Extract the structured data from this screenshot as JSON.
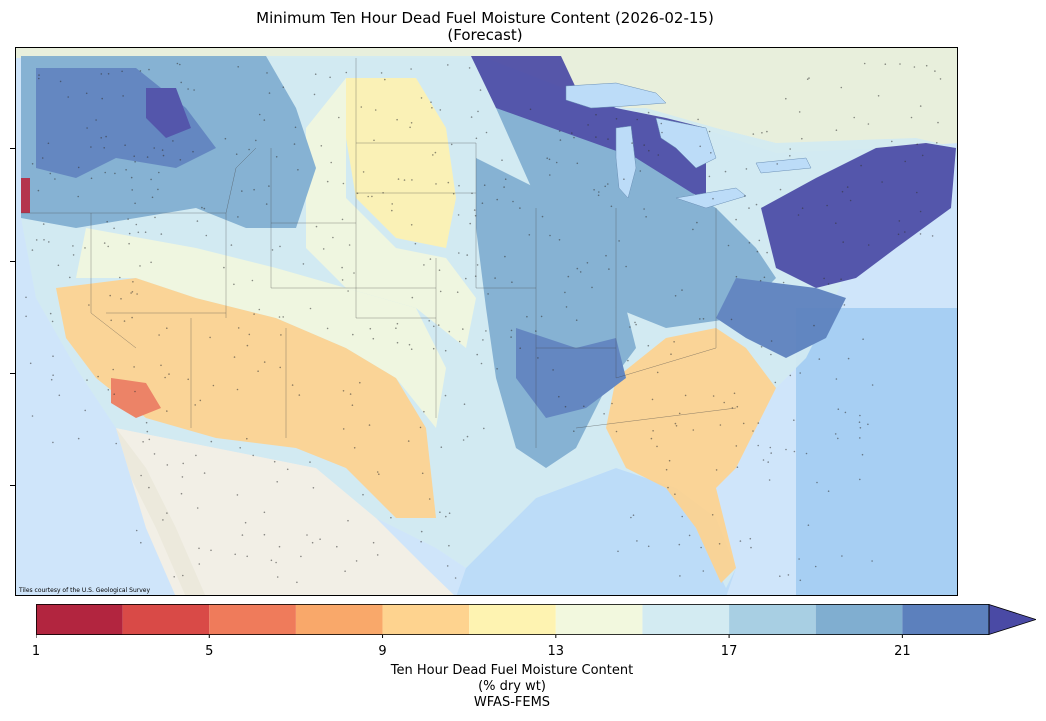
{
  "title": {
    "line1": "Minimum Ten Hour Dead Fuel Moisture Content (2026-02-15)",
    "line2": "(Forecast)"
  },
  "map": {
    "attribution": "Tiles courtesy of the U.S. Geological Survey",
    "basemap_colors": {
      "ocean": "#cfe5fa",
      "land": "#eef0e2",
      "mexico": "#f2efe6"
    }
  },
  "colorbar": {
    "label_line1": "Ten Hour Dead Fuel Moisture Content",
    "label_line2": "(% dry wt)",
    "label_line3": "WFAS-FEMS",
    "min": 1,
    "max": 23,
    "extend": "max",
    "ticks": [
      "1",
      "5",
      "9",
      "13",
      "17",
      "21"
    ],
    "tick_values": [
      1,
      5,
      9,
      13,
      17,
      21
    ],
    "bins": [
      {
        "from": 1,
        "to": 3,
        "color": "#b2253f"
      },
      {
        "from": 3,
        "to": 5,
        "color": "#d94a47"
      },
      {
        "from": 5,
        "to": 7,
        "color": "#ef7b5b"
      },
      {
        "from": 7,
        "to": 9,
        "color": "#f9a86a"
      },
      {
        "from": 9,
        "to": 11,
        "color": "#fed38f"
      },
      {
        "from": 11,
        "to": 13,
        "color": "#fef3b1"
      },
      {
        "from": 13,
        "to": 15,
        "color": "#f2f8de"
      },
      {
        "from": 15,
        "to": 17,
        "color": "#d3ebf2"
      },
      {
        "from": 17,
        "to": 19,
        "color": "#a8cfe3"
      },
      {
        "from": 19,
        "to": 21,
        "color": "#80aed0"
      },
      {
        "from": 21,
        "to": 23,
        "color": "#5c80bd"
      },
      {
        "from": 23,
        "to": 99,
        "color": "#4a4aa5"
      }
    ]
  }
}
